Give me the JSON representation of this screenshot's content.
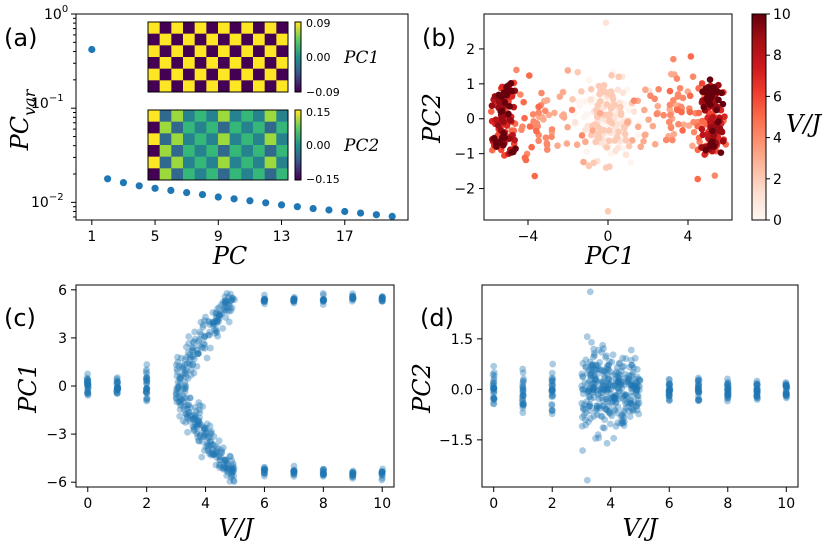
{
  "colors": {
    "dot": "#1f77b4",
    "checker_a": "#fde725",
    "checker_b": "#440154",
    "checker_mid": "#21918c",
    "oranges": [
      "#fff5eb",
      "#fee6ce",
      "#fdd0a2",
      "#fdae6b",
      "#fd8d3c",
      "#f16913",
      "#d94801",
      "#a63603",
      "#7f2704"
    ],
    "reds": [
      "#fff5f0",
      "#fee0d2",
      "#fcbba1",
      "#fc9272",
      "#fb6a4a",
      "#ef3b2c",
      "#cb181d",
      "#a50f15",
      "#67000d"
    ]
  },
  "chart_data": [
    {
      "id": "a",
      "panel_label": "(a)",
      "type": "scatter",
      "xlabel": "PC",
      "ylabel": "PC_var",
      "ylabel_main": "PC",
      "ylabel_sub": "var",
      "yscale": "log",
      "xlim": [
        0,
        21
      ],
      "ylim": [
        0.0065,
        1.0
      ],
      "xticks": [
        1,
        5,
        9,
        13,
        17
      ],
      "ytick_labels": [
        {
          "base": "10",
          "exp": "0",
          "value": 1.0
        },
        {
          "base": "10",
          "exp": "−1",
          "value": 0.1
        },
        {
          "base": "10",
          "exp": "−2",
          "value": 0.01
        }
      ],
      "x": [
        1,
        2,
        3,
        4,
        5,
        6,
        7,
        8,
        9,
        10,
        11,
        12,
        13,
        14,
        15,
        16,
        17,
        18,
        19,
        20
      ],
      "y": [
        0.42,
        0.0178,
        0.0162,
        0.015,
        0.0141,
        0.0134,
        0.0127,
        0.0121,
        0.0114,
        0.0109,
        0.0104,
        0.0099,
        0.0094,
        0.009,
        0.0086,
        0.0083,
        0.008,
        0.0077,
        0.0074,
        0.0071
      ],
      "insets": [
        {
          "label": "PC1",
          "pattern": "checkerboard",
          "rows": 6,
          "cols": 12,
          "colorbar_ticks": [
            "0.09",
            "0.00",
            "−0.09"
          ]
        },
        {
          "label": "PC2",
          "pattern": "partial-checkerboard",
          "rows": 6,
          "cols": 12,
          "colorbar_ticks": [
            "0.15",
            "0.00",
            "−0.15"
          ]
        }
      ]
    },
    {
      "id": "b",
      "panel_label": "(b)",
      "type": "scatter",
      "xlabel": "PC1",
      "ylabel": "PC2",
      "xlim": [
        -6.2,
        6.2
      ],
      "ylim": [
        -2.9,
        3.0
      ],
      "xticks": [
        -4,
        0,
        4
      ],
      "xtick_labels": [
        "−4",
        "0",
        "4"
      ],
      "yticks": [
        -2,
        -1,
        0,
        1,
        2
      ],
      "ytick_labels": [
        "−2",
        "−1",
        "0",
        "1",
        "2"
      ],
      "colorbar": {
        "label": "V/J",
        "min": 0,
        "max": 10,
        "ticks": [
          "0",
          "2",
          "4",
          "6",
          "8",
          "10"
        ]
      },
      "n_points": 600,
      "description": "points colored by V/J; low V/J cluster near origin, high V/J clusters at PC1 = ±5.5"
    },
    {
      "id": "c",
      "panel_label": "(c)",
      "type": "scatter",
      "xlabel": "V/J",
      "ylabel": "PC1",
      "xlim": [
        -0.4,
        10.4
      ],
      "ylim": [
        -6.3,
        6.3
      ],
      "xticks": [
        0,
        2,
        4,
        6,
        8,
        10
      ],
      "yticks": [
        -6,
        -3,
        0,
        3,
        6
      ],
      "ytick_labels": [
        "−6",
        "−3",
        "0",
        "3",
        "6"
      ],
      "columns_vj": [
        0,
        1,
        2,
        6,
        7,
        8,
        9,
        10
      ],
      "spread_low": {
        "0": 1.0,
        "1": 1.0,
        "2": 1.8
      },
      "high_branch": {
        "6": 5.3,
        "7": 5.35,
        "8": 5.4,
        "9": 5.5,
        "10": 5.45
      },
      "transition_vj_range": [
        3.0,
        5.0
      ]
    },
    {
      "id": "d",
      "panel_label": "(d)",
      "type": "scatter",
      "xlabel": "V/J",
      "ylabel": "PC2",
      "xlim": [
        -0.4,
        10.4
      ],
      "ylim": [
        -2.9,
        3.1
      ],
      "xticks": [
        0,
        2,
        4,
        6,
        8,
        10
      ],
      "yticks": [
        -1.5,
        0.0,
        1.5
      ],
      "ytick_labels": [
        "−1.5",
        "0.0",
        "1.5"
      ],
      "column_spread": {
        "0": 0.9,
        "1": 1.0,
        "2": 1.2,
        "6": 0.6,
        "7": 0.55,
        "8": 0.5,
        "9": 0.5,
        "10": 0.5
      },
      "transition_vj_range": [
        3.0,
        5.0
      ]
    }
  ]
}
